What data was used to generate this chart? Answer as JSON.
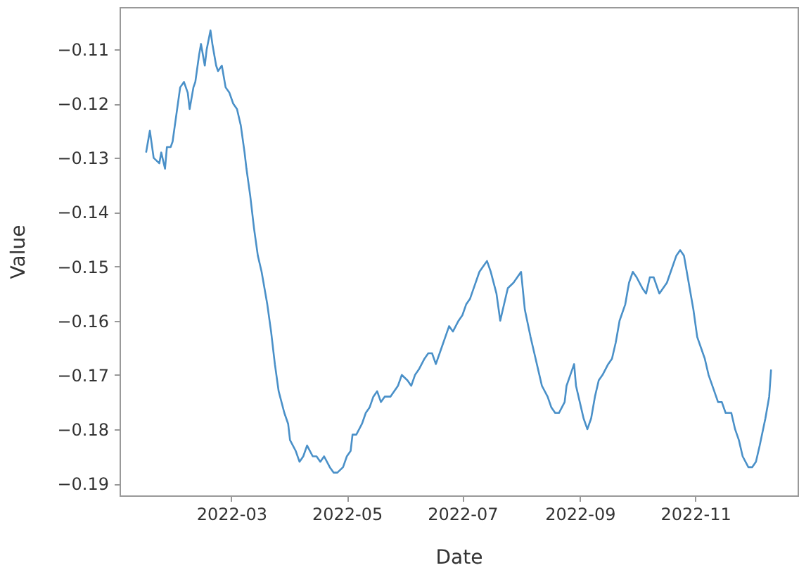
{
  "chart_data": {
    "type": "line",
    "xlabel": "Date",
    "ylabel": "Value",
    "x": [
      "2022-01-15",
      "2022-01-17",
      "2022-01-19",
      "2022-01-22",
      "2022-01-23",
      "2022-01-25",
      "2022-01-26",
      "2022-01-28",
      "2022-01-29",
      "2022-01-31",
      "2022-02-02",
      "2022-02-04",
      "2022-02-06",
      "2022-02-07",
      "2022-02-09",
      "2022-02-10",
      "2022-02-12",
      "2022-02-13",
      "2022-02-15",
      "2022-02-16",
      "2022-02-18",
      "2022-02-19",
      "2022-02-21",
      "2022-02-22",
      "2022-02-24",
      "2022-02-26",
      "2022-02-28",
      "2022-03-02",
      "2022-03-04",
      "2022-03-06",
      "2022-03-08",
      "2022-03-09",
      "2022-03-11",
      "2022-03-13",
      "2022-03-15",
      "2022-03-17",
      "2022-03-20",
      "2022-03-22",
      "2022-03-24",
      "2022-03-26",
      "2022-03-29",
      "2022-03-31",
      "2022-04-01",
      "2022-04-04",
      "2022-04-06",
      "2022-04-08",
      "2022-04-10",
      "2022-04-13",
      "2022-04-15",
      "2022-04-17",
      "2022-04-19",
      "2022-04-22",
      "2022-04-24",
      "2022-04-26",
      "2022-04-29",
      "2022-05-01",
      "2022-05-03",
      "2022-05-04",
      "2022-05-06",
      "2022-05-09",
      "2022-05-11",
      "2022-05-13",
      "2022-05-15",
      "2022-05-17",
      "2022-05-19",
      "2022-05-21",
      "2022-05-24",
      "2022-05-26",
      "2022-05-28",
      "2022-05-30",
      "2022-06-02",
      "2022-06-04",
      "2022-06-06",
      "2022-06-08",
      "2022-06-11",
      "2022-06-13",
      "2022-06-15",
      "2022-06-17",
      "2022-06-20",
      "2022-06-22",
      "2022-06-24",
      "2022-06-26",
      "2022-06-29",
      "2022-07-01",
      "2022-07-03",
      "2022-07-05",
      "2022-07-07",
      "2022-07-10",
      "2022-07-12",
      "2022-07-14",
      "2022-07-16",
      "2022-07-19",
      "2022-07-21",
      "2022-07-23",
      "2022-07-25",
      "2022-07-28",
      "2022-07-30",
      "2022-08-01",
      "2022-08-03",
      "2022-08-06",
      "2022-08-08",
      "2022-08-10",
      "2022-08-12",
      "2022-08-15",
      "2022-08-17",
      "2022-08-19",
      "2022-08-21",
      "2022-08-24",
      "2022-08-25",
      "2022-08-27",
      "2022-08-29",
      "2022-08-30",
      "2022-09-01",
      "2022-09-03",
      "2022-09-05",
      "2022-09-07",
      "2022-09-09",
      "2022-09-11",
      "2022-09-13",
      "2022-09-16",
      "2022-09-18",
      "2022-09-20",
      "2022-09-22",
      "2022-09-25",
      "2022-09-27",
      "2022-09-29",
      "2022-10-01",
      "2022-10-04",
      "2022-10-06",
      "2022-10-08",
      "2022-10-10",
      "2022-10-13",
      "2022-10-15",
      "2022-10-17",
      "2022-10-19",
      "2022-10-22",
      "2022-10-24",
      "2022-10-26",
      "2022-10-28",
      "2022-10-31",
      "2022-11-02",
      "2022-11-04",
      "2022-11-06",
      "2022-11-08",
      "2022-11-11",
      "2022-11-13",
      "2022-11-15",
      "2022-11-17",
      "2022-11-20",
      "2022-11-22",
      "2022-11-24",
      "2022-11-26",
      "2022-11-29",
      "2022-12-01",
      "2022-12-03",
      "2022-12-05",
      "2022-12-08",
      "2022-12-10",
      "2022-12-11"
    ],
    "series": [
      {
        "color": "#4a90c8",
        "values": [
          -0.129,
          -0.125,
          -0.13,
          -0.131,
          -0.129,
          -0.132,
          -0.128,
          -0.128,
          -0.127,
          -0.122,
          -0.117,
          -0.116,
          -0.118,
          -0.121,
          -0.117,
          -0.116,
          -0.111,
          -0.109,
          -0.113,
          -0.11,
          -0.1065,
          -0.109,
          -0.113,
          -0.114,
          -0.113,
          -0.117,
          -0.118,
          -0.12,
          -0.121,
          -0.124,
          -0.129,
          -0.132,
          -0.137,
          -0.143,
          -0.148,
          -0.151,
          -0.157,
          -0.162,
          -0.168,
          -0.173,
          -0.177,
          -0.179,
          -0.182,
          -0.184,
          -0.186,
          -0.185,
          -0.183,
          -0.185,
          -0.185,
          -0.186,
          -0.185,
          -0.187,
          -0.188,
          -0.188,
          -0.187,
          -0.185,
          -0.184,
          -0.181,
          -0.181,
          -0.179,
          -0.177,
          -0.176,
          -0.174,
          -0.173,
          -0.175,
          -0.174,
          -0.174,
          -0.173,
          -0.172,
          -0.17,
          -0.171,
          -0.172,
          -0.17,
          -0.169,
          -0.167,
          -0.166,
          -0.166,
          -0.168,
          -0.165,
          -0.163,
          -0.161,
          -0.162,
          -0.16,
          -0.159,
          -0.157,
          -0.156,
          -0.154,
          -0.151,
          -0.15,
          -0.149,
          -0.151,
          -0.155,
          -0.16,
          -0.157,
          -0.154,
          -0.153,
          -0.152,
          -0.151,
          -0.158,
          -0.163,
          -0.166,
          -0.169,
          -0.172,
          -0.174,
          -0.176,
          -0.177,
          -0.177,
          -0.175,
          -0.172,
          -0.17,
          -0.168,
          -0.172,
          -0.175,
          -0.178,
          -0.18,
          -0.178,
          -0.174,
          -0.171,
          -0.17,
          -0.168,
          -0.167,
          -0.164,
          -0.16,
          -0.157,
          -0.153,
          -0.151,
          -0.152,
          -0.154,
          -0.155,
          -0.152,
          -0.152,
          -0.155,
          -0.154,
          -0.153,
          -0.151,
          -0.148,
          -0.147,
          -0.148,
          -0.152,
          -0.158,
          -0.163,
          -0.165,
          -0.167,
          -0.17,
          -0.173,
          -0.175,
          -0.175,
          -0.177,
          -0.177,
          -0.18,
          -0.182,
          -0.185,
          -0.187,
          -0.187,
          -0.186,
          -0.183,
          -0.178,
          -0.174,
          -0.169
        ]
      }
    ],
    "xlim": [
      "2022-01-01",
      "2022-12-25"
    ],
    "xticks": [
      "2022-03",
      "2022-05",
      "2022-07",
      "2022-09",
      "2022-11"
    ],
    "ylim": [
      -0.1922,
      -0.1022
    ],
    "yticks": [
      -0.19,
      -0.18,
      -0.17,
      -0.16,
      -0.15,
      -0.14,
      -0.13,
      -0.12,
      -0.11
    ],
    "grid": false
  }
}
